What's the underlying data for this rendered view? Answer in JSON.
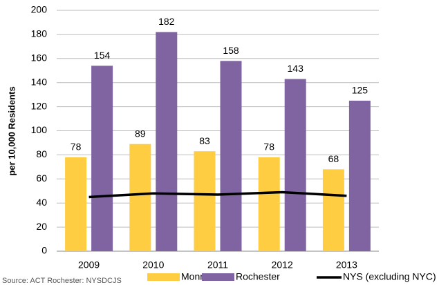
{
  "chart_data": {
    "type": "bar",
    "y_axis_label": "per 10,000 Residents",
    "source": "Source: ACT Rochester: NYSDCJS",
    "categories": [
      "2009",
      "2010",
      "2011",
      "2012",
      "2013"
    ],
    "series": [
      {
        "name": "Monroe",
        "type": "bar",
        "color": "#FFCD42",
        "values": [
          78,
          89,
          83,
          78,
          68
        ]
      },
      {
        "name": "Rochester",
        "type": "bar",
        "color": "#8064A2",
        "values": [
          154,
          182,
          158,
          143,
          125
        ]
      },
      {
        "name": "NYS (excluding NYC)",
        "type": "line",
        "color": "#000000",
        "values": [
          45,
          48,
          47,
          49,
          46
        ]
      }
    ],
    "ylim": [
      0,
      200
    ],
    "yticks": [
      0,
      20,
      40,
      60,
      80,
      100,
      120,
      140,
      160,
      180,
      200
    ],
    "grid": true,
    "data_labels": true,
    "legend": "bottom"
  }
}
